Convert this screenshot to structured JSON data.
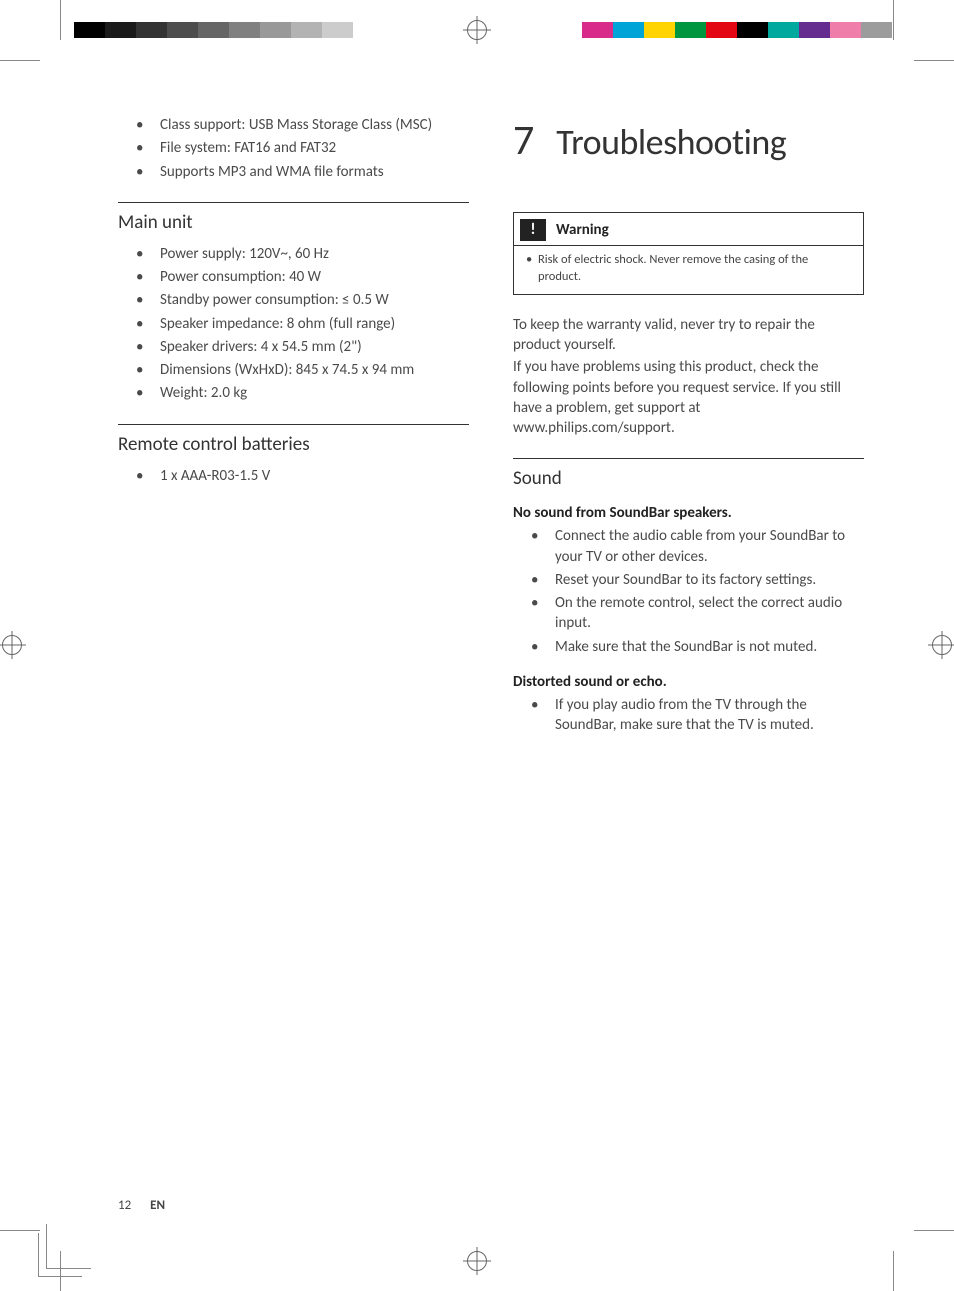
{
  "registration": {
    "grayscale_swatches": [
      "#000000",
      "#1a1a1a",
      "#333333",
      "#4d4d4d",
      "#666666",
      "#808080",
      "#999999",
      "#b3b3b3",
      "#cccccc",
      "#ffffff"
    ],
    "color_swatches": [
      "#d82b8a",
      "#00a4d6",
      "#ffd400",
      "#009640",
      "#e30613",
      "#000000",
      "#00a99d",
      "#662d91",
      "#ef7eab",
      "#9c9c9c"
    ]
  },
  "left": {
    "usb_continued": [
      "Class support: USB Mass Storage Class (MSC)",
      "File system: FAT16 and FAT32",
      "Supports MP3 and WMA file formats"
    ],
    "main_unit_head": "Main unit",
    "main_unit_items": [
      "Power supply: 120V~, 60 Hz",
      "Power consumption: 40 W",
      "Standby power consumption: ≤ 0.5 W",
      "Speaker impedance: 8 ohm (full range)",
      "Speaker drivers: 4 x 54.5 mm (2\")",
      "Dimensions (WxHxD): 845 x 74.5 x 94 mm",
      "Weight: 2.0 kg"
    ],
    "remote_head": "Remote control batteries",
    "remote_items": [
      "1 x AAA-R03-1.5 V"
    ]
  },
  "right": {
    "chapter_num": "7",
    "chapter_title": "Troubleshooting",
    "warning_label": "Warning",
    "warning_text": "Risk of electric shock. Never remove the casing of the product.",
    "intro": [
      "To keep the warranty valid, never try to repair the product yourself.",
      "If you have problems using this product, check the following points before you request service. If you still have a problem, get support at www.philips.com/support."
    ],
    "sound_head": "Sound",
    "no_sound_head": "No sound from SoundBar speakers.",
    "no_sound_items": [
      "Connect the audio cable from your SoundBar to your TV or other devices.",
      "Reset your SoundBar to its factory settings.",
      "On the remote control, select the correct audio input.",
      "Make sure that the SoundBar is not muted."
    ],
    "distorted_head": "Distorted sound or echo.",
    "distorted_items": [
      "If you play audio from the TV through the SoundBar, make sure that the TV is muted."
    ]
  },
  "footer": {
    "page": "12",
    "lang": "EN"
  }
}
